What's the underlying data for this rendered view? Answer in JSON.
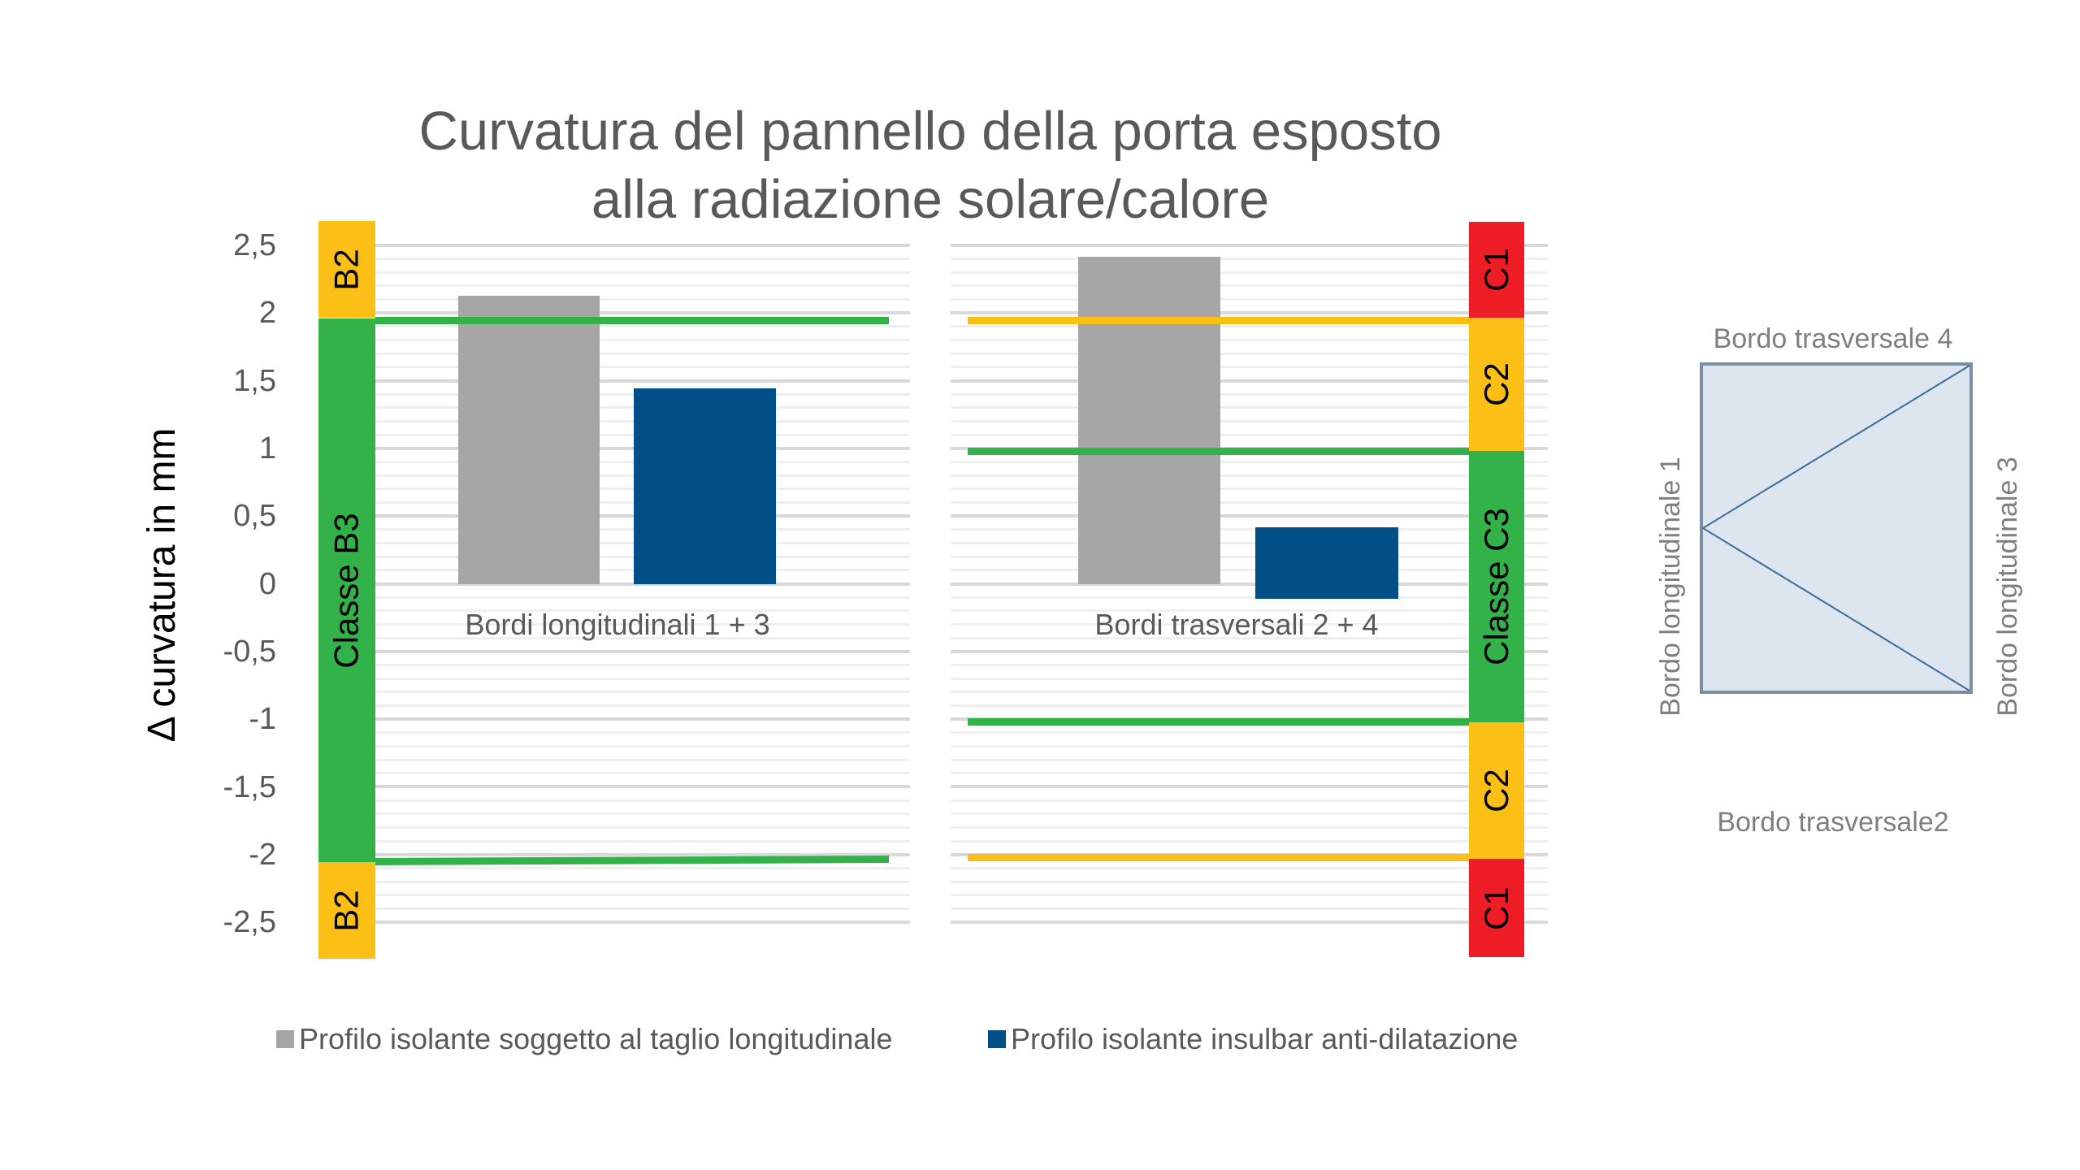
{
  "title": {
    "line1": "Curvatura del pannello della porta esposto",
    "line2": "alla radiazione solare/calore"
  },
  "y_axis": {
    "label": "Δ curvatura in mm",
    "ticks": [
      "2,5",
      "2",
      "1,5",
      "1",
      "0,5",
      "0",
      "-0,5",
      "-1",
      "-1,5",
      "-2",
      "-2,5"
    ]
  },
  "left_classes": {
    "top": "B2",
    "middle": "Classe B3",
    "bottom": "B2"
  },
  "right_classes": {
    "top": "C1",
    "upper": "C2",
    "middle": "Classe C3",
    "lower": "C2",
    "bottom": "C1"
  },
  "categories": [
    "Bordi longitudinali 1 + 3",
    "Bordi trasversali 2 + 4"
  ],
  "legend": [
    {
      "label": "Profilo isolante soggetto al taglio longitudinale",
      "color": "#a6a6a6"
    },
    {
      "label": "Profilo isolante insulbar anti-dilatazione",
      "color": "#004f87"
    }
  ],
  "diagram": {
    "top": "Bordo trasversale 4",
    "bottom": "Bordo trasversale2",
    "left": "Bordo longitudinale 1",
    "right": "Bordo longitudinale 3"
  },
  "colors": {
    "green": "#33b24a",
    "yellow": "#fbbf16",
    "red": "#ee1c25",
    "gray_bar": "#a6a6a6",
    "blue_bar": "#004f87",
    "panel_fill": "#dde6ef",
    "panel_stroke": "#7a8fa3",
    "panel_line": "#3a6d9a"
  },
  "chart_data": {
    "type": "bar",
    "title": "Curvatura del pannello della porta esposto alla radiazione solare/calore",
    "xlabel": "",
    "ylabel": "Δ curvatura in mm",
    "ylim": [
      -2.5,
      2.5
    ],
    "yticks": [
      2.5,
      2,
      1.5,
      1,
      0.5,
      0,
      -0.5,
      -1,
      -1.5,
      -2,
      -2.5
    ],
    "grid": true,
    "minor_grid_step": 0.1,
    "legend_position": "bottom",
    "categories": [
      "Bordi longitudinali 1 + 3",
      "Bordi trasversali 2 + 4"
    ],
    "series": [
      {
        "name": "Profilo isolante soggetto al taglio longitudinale",
        "color": "#a6a6a6",
        "values": [
          2.13,
          2.42
        ]
      },
      {
        "name": "Profilo isolante insulbar anti-dilatazione",
        "color": "#004f87",
        "values": [
          1.45,
          0.41
        ],
        "note": "second bar drawn from 0.41 down to about -0.1"
      }
    ],
    "threshold_lines": [
      {
        "panel": "Bordi longitudinali 1 + 3",
        "value": 1.97,
        "color": "#33b24a"
      },
      {
        "panel": "Bordi longitudinali 1 + 3",
        "value": -1.99,
        "color": "#33b24a"
      },
      {
        "panel": "Bordi trasversali 2 + 4",
        "value": 1.97,
        "color": "#fbbf16"
      },
      {
        "panel": "Bordi trasversali 2 + 4",
        "value": 1.0,
        "color": "#33b24a"
      },
      {
        "panel": "Bordi trasversali 2 + 4",
        "value": -1.0,
        "color": "#33b24a"
      },
      {
        "panel": "Bordi trasversali 2 + 4",
        "value": -1.97,
        "color": "#fbbf16"
      }
    ],
    "class_bands": {
      "left": [
        {
          "label": "B2",
          "from": 2.0,
          "to": 2.7,
          "color": "#fbbf16"
        },
        {
          "label": "Classe B3",
          "from": -2.0,
          "to": 2.0,
          "color": "#33b24a"
        },
        {
          "label": "B2",
          "from": -2.7,
          "to": -2.0,
          "color": "#fbbf16"
        }
      ],
      "right": [
        {
          "label": "C1",
          "from": 2.0,
          "to": 2.7,
          "color": "#ee1c25"
        },
        {
          "label": "C2",
          "from": 1.0,
          "to": 2.0,
          "color": "#fbbf16"
        },
        {
          "label": "Classe C3",
          "from": -1.0,
          "to": 1.0,
          "color": "#33b24a"
        },
        {
          "label": "C2",
          "from": -2.0,
          "to": -1.0,
          "color": "#fbbf16"
        },
        {
          "label": "C1",
          "from": -2.7,
          "to": -2.0,
          "color": "#ee1c25"
        }
      ]
    }
  }
}
